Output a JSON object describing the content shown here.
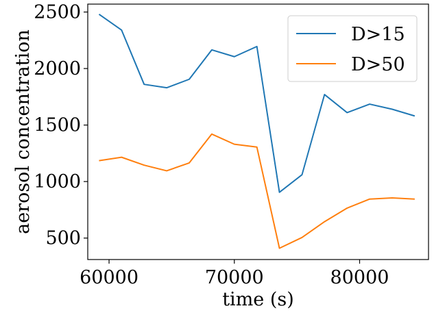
{
  "chart_data": {
    "type": "line",
    "title": "",
    "xlabel": "time (s)",
    "ylabel": "aerosol concentration",
    "xlim": [
      58300,
      85500
    ],
    "ylim": [
      310,
      2570
    ],
    "xticks": [
      60000,
      70000,
      80000
    ],
    "yticks": [
      500,
      1000,
      1500,
      2000,
      2500
    ],
    "grid": false,
    "legend_position": "top-right",
    "series": [
      {
        "name": "D>15",
        "color": "#1f77b4",
        "x": [
          59200,
          61000,
          62800,
          64600,
          66400,
          68200,
          70000,
          71800,
          73600,
          75400,
          77200,
          79000,
          80800,
          82600,
          84400
        ],
        "y": [
          2480,
          2340,
          1860,
          1830,
          1905,
          2165,
          2105,
          2195,
          905,
          1060,
          1770,
          1610,
          1685,
          1640,
          1580
        ]
      },
      {
        "name": "D>50",
        "color": "#ff7f0e",
        "x": [
          59200,
          61000,
          62800,
          64600,
          66400,
          68200,
          70000,
          71800,
          73600,
          75400,
          77200,
          79000,
          80800,
          82600,
          84400
        ],
        "y": [
          1185,
          1215,
          1145,
          1095,
          1165,
          1420,
          1330,
          1305,
          410,
          505,
          645,
          765,
          845,
          855,
          845
        ]
      }
    ]
  }
}
